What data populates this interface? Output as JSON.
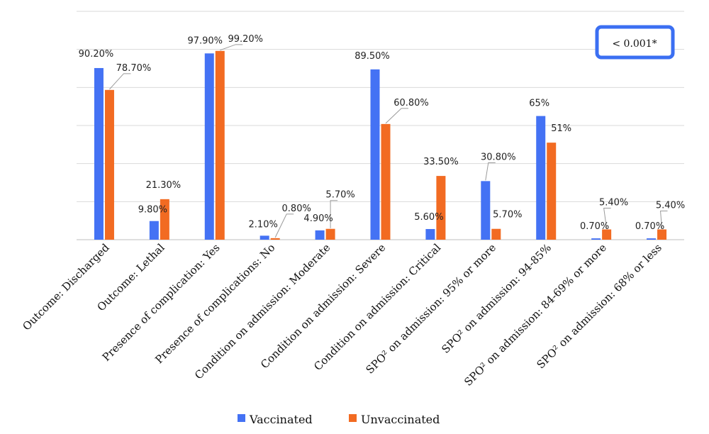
{
  "chart_data": {
    "type": "bar",
    "categories": [
      "Outcome: Discharged",
      "Outcome: Lethal",
      "Presence of complication: Yes",
      "Presence of complications: No",
      "Condition on admission: Moderate",
      "Condition on admission: Severe",
      "Condition on admission: Critical",
      "SPO² on admission: 95% or more",
      "SPO² on admission: 94-85%",
      "SPO² on admission: 84-69% or more",
      "SPO² on admission: 68% or less"
    ],
    "series": [
      {
        "name": "Vaccinated",
        "color": "#4472F4",
        "values": [
          90.2,
          9.8,
          97.9,
          2.1,
          4.9,
          89.5,
          5.6,
          30.8,
          65,
          0.7,
          0.7
        ],
        "labels": [
          "90.20%",
          "9.80%",
          "97.90%",
          "2.10%",
          "4.90%",
          "89.50%",
          "5.60%",
          "30.80%",
          "65%",
          "0.70%",
          "0.70%"
        ]
      },
      {
        "name": "Unvaccinated",
        "color": "#F26B22",
        "values": [
          78.7,
          21.3,
          99.2,
          0.8,
          5.7,
          60.8,
          33.5,
          5.7,
          51,
          5.4,
          5.4
        ],
        "labels": [
          "78.70%",
          "21.30%",
          "99.20%",
          "0.80%",
          "5.70%",
          "60.80%",
          "33.50%",
          "5.70%",
          "51%",
          "5.40%",
          "5.40%"
        ]
      }
    ],
    "ylim": [
      0,
      120
    ],
    "grid": true,
    "legend": "bottom",
    "annotation": "< 0.001*",
    "annotation_color": "#3B6FF2"
  }
}
